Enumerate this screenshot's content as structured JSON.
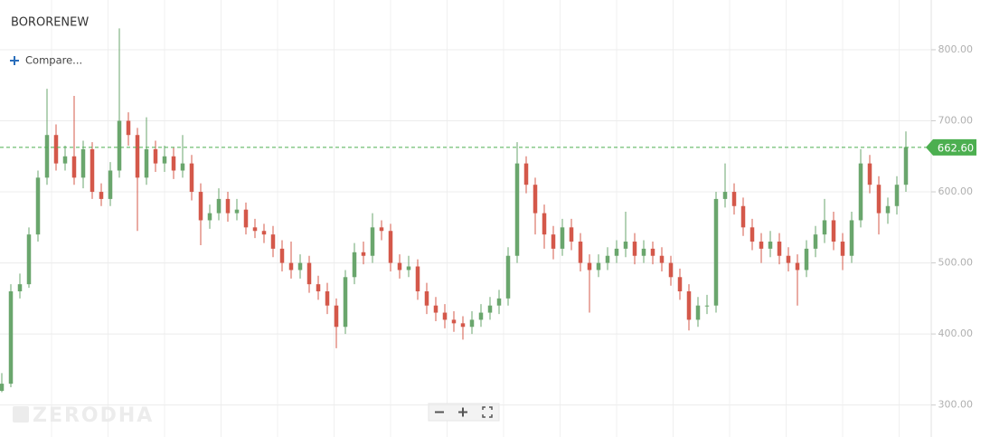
{
  "chart_data": {
    "type": "candlestick",
    "title": "BORORENEW",
    "compare_label": "Compare...",
    "watermark": "ZERODHA",
    "ylim": [
      255,
      870
    ],
    "yticks": [
      {
        "value": 300,
        "label": "300.00"
      },
      {
        "value": 400,
        "label": "400.00"
      },
      {
        "value": 500,
        "label": "500.00"
      },
      {
        "value": 600,
        "label": "600.00"
      },
      {
        "value": 700,
        "label": "700.00"
      },
      {
        "value": 800,
        "label": "800.00"
      }
    ],
    "grid": true,
    "up_color": "#6aa66d",
    "down_color": "#d4584a",
    "last_price": {
      "value": 662.6,
      "label": "662.60"
    },
    "last_price_color": "#4caf50",
    "open": [
      320,
      330,
      460,
      470,
      540,
      620,
      680,
      640,
      650,
      620,
      660,
      600,
      590,
      630,
      700,
      680,
      620,
      660,
      640,
      650,
      630,
      640,
      600,
      560,
      570,
      590,
      570,
      575,
      550,
      545,
      540,
      520,
      500,
      490,
      500,
      470,
      460,
      440,
      410,
      480,
      515,
      510,
      550,
      545,
      500,
      490,
      495,
      460,
      440,
      430,
      420,
      415,
      410,
      420,
      430,
      440,
      450,
      510,
      640,
      610,
      570,
      540,
      520,
      550,
      530,
      500,
      490,
      500,
      510,
      520,
      530,
      510,
      520,
      510,
      500,
      480,
      460,
      420,
      440,
      440,
      590,
      600,
      580,
      550,
      530,
      520,
      530,
      510,
      500,
      490,
      520,
      540,
      560,
      530,
      510,
      560,
      640,
      610,
      570,
      580,
      610
    ],
    "high": [
      345,
      470,
      485,
      550,
      630,
      745,
      695,
      665,
      735,
      672,
      670,
      612,
      642,
      830,
      712,
      690,
      705,
      672,
      665,
      662,
      680,
      652,
      612,
      582,
      605,
      600,
      590,
      585,
      562,
      555,
      552,
      532,
      530,
      512,
      510,
      482,
      472,
      450,
      490,
      528,
      530,
      570,
      560,
      555,
      512,
      510,
      505,
      472,
      452,
      442,
      432,
      425,
      432,
      442,
      452,
      462,
      522,
      670,
      650,
      620,
      582,
      552,
      562,
      562,
      542,
      512,
      512,
      522,
      532,
      572,
      542,
      532,
      530,
      522,
      510,
      492,
      470,
      452,
      455,
      600,
      640,
      612,
      592,
      562,
      542,
      545,
      542,
      522,
      512,
      532,
      552,
      590,
      572,
      542,
      572,
      660,
      652,
      622,
      592,
      622,
      685
    ],
    "low": [
      318,
      325,
      450,
      465,
      530,
      610,
      630,
      630,
      610,
      605,
      590,
      580,
      580,
      620,
      665,
      545,
      610,
      628,
      628,
      618,
      620,
      588,
      525,
      548,
      560,
      558,
      560,
      540,
      535,
      528,
      508,
      488,
      478,
      478,
      458,
      448,
      428,
      380,
      400,
      470,
      498,
      500,
      532,
      488,
      478,
      480,
      448,
      428,
      418,
      408,
      403,
      392,
      400,
      410,
      420,
      428,
      440,
      500,
      598,
      540,
      520,
      505,
      510,
      518,
      488,
      430,
      480,
      490,
      500,
      508,
      498,
      500,
      498,
      488,
      468,
      448,
      405,
      410,
      428,
      430,
      578,
      568,
      538,
      518,
      500,
      508,
      498,
      488,
      440,
      480,
      508,
      528,
      518,
      490,
      500,
      550,
      598,
      540,
      555,
      568,
      600
    ],
    "close": [
      330,
      460,
      470,
      540,
      620,
      680,
      640,
      650,
      620,
      660,
      600,
      590,
      630,
      700,
      680,
      620,
      660,
      640,
      650,
      630,
      640,
      600,
      560,
      570,
      590,
      570,
      575,
      550,
      545,
      540,
      520,
      500,
      490,
      500,
      470,
      460,
      440,
      410,
      480,
      515,
      510,
      550,
      545,
      500,
      490,
      495,
      460,
      440,
      430,
      420,
      415,
      410,
      420,
      430,
      440,
      450,
      510,
      640,
      610,
      570,
      540,
      520,
      550,
      530,
      500,
      490,
      500,
      510,
      520,
      530,
      510,
      520,
      510,
      500,
      480,
      460,
      420,
      440,
      440,
      590,
      600,
      580,
      550,
      530,
      520,
      530,
      510,
      500,
      490,
      520,
      540,
      560,
      530,
      510,
      560,
      640,
      610,
      570,
      580,
      610,
      663
    ]
  }
}
